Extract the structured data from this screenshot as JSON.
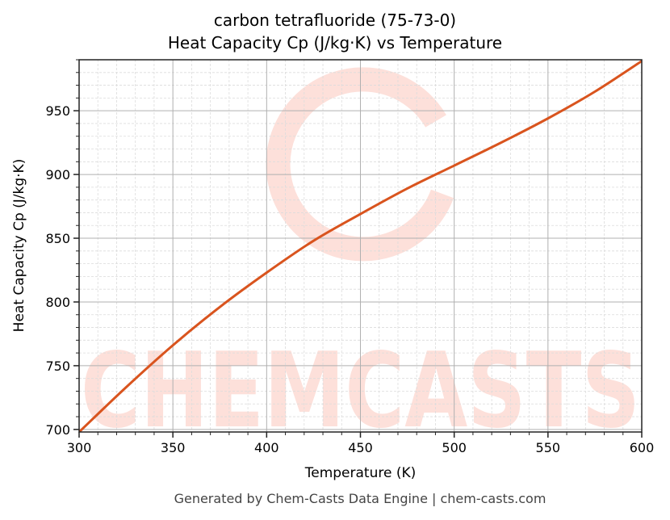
{
  "chart_data": {
    "type": "line",
    "title": "carbon tetrafluoride (75-73-0)",
    "subtitle": "Heat Capacity Cp (J/kg·K) vs Temperature",
    "xlabel": "Temperature (K)",
    "ylabel": "Heat Capacity Cp (J/kg·K)",
    "xlim": [
      300,
      600
    ],
    "ylim": [
      698,
      990
    ],
    "x_ticks": [
      300,
      350,
      400,
      450,
      500,
      550,
      600
    ],
    "y_ticks": [
      700,
      750,
      800,
      850,
      900,
      950
    ],
    "grid": {
      "major": true,
      "minor": true
    },
    "legend": null,
    "series": [
      {
        "name": "Heat Capacity Cp",
        "color": "#d9541e",
        "x": [
          300,
          325,
          350,
          375,
          400,
          425,
          450,
          475,
          500,
          525,
          550,
          575,
          600
        ],
        "values": [
          698,
          733,
          766,
          796,
          823,
          848,
          869,
          889,
          907,
          925,
          944,
          965,
          989
        ]
      }
    ]
  },
  "watermark": {
    "text": "CHEMCASTS",
    "color": "#fde0da"
  },
  "footer": "Generated by Chem-Casts Data Engine | chem-casts.com"
}
